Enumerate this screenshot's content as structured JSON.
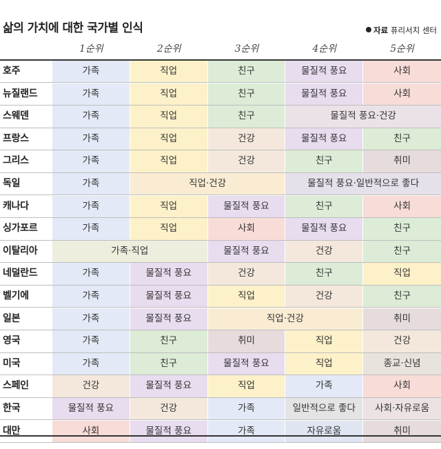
{
  "title": "삶의 가치에 대한 국가별 인식",
  "source": {
    "label": "자료",
    "text": "퓨리서치 센터"
  },
  "chart_data": {
    "type": "table",
    "columns": [
      "1순위",
      "2순위",
      "3순위",
      "4순위",
      "5순위"
    ],
    "rows": [
      {
        "country": "호주",
        "cells": [
          [
            "가족",
            1
          ],
          [
            "직업",
            1
          ],
          [
            "친구",
            1
          ],
          [
            "물질적 풍요",
            1
          ],
          [
            "사회",
            1
          ]
        ]
      },
      {
        "country": "뉴질랜드",
        "cells": [
          [
            "가족",
            1
          ],
          [
            "직업",
            1
          ],
          [
            "친구",
            1
          ],
          [
            "물질적 풍요",
            1
          ],
          [
            "사회",
            1
          ]
        ]
      },
      {
        "country": "스웨덴",
        "cells": [
          [
            "가족",
            1
          ],
          [
            "직업",
            1
          ],
          [
            "친구",
            1
          ],
          [
            "물질적 풍요·건강",
            2
          ]
        ]
      },
      {
        "country": "프랑스",
        "cells": [
          [
            "가족",
            1
          ],
          [
            "직업",
            1
          ],
          [
            "건강",
            1
          ],
          [
            "물질적 풍요",
            1
          ],
          [
            "친구",
            1
          ]
        ]
      },
      {
        "country": "그리스",
        "cells": [
          [
            "가족",
            1
          ],
          [
            "직업",
            1
          ],
          [
            "건강",
            1
          ],
          [
            "친구",
            1
          ],
          [
            "취미",
            1
          ]
        ]
      },
      {
        "country": "독일",
        "cells": [
          [
            "가족",
            1
          ],
          [
            "직업·건강",
            2
          ],
          [
            "물질적 풍요·일반적으로 좋다",
            2
          ]
        ]
      },
      {
        "country": "캐나다",
        "cells": [
          [
            "가족",
            1
          ],
          [
            "직업",
            1
          ],
          [
            "물질적 풍요",
            1
          ],
          [
            "친구",
            1
          ],
          [
            "사회",
            1
          ]
        ]
      },
      {
        "country": "싱가포르",
        "cells": [
          [
            "가족",
            1
          ],
          [
            "직업",
            1
          ],
          [
            "사회",
            1
          ],
          [
            "물질적 풍요",
            1
          ],
          [
            "친구",
            1
          ]
        ]
      },
      {
        "country": "이탈리아",
        "cells": [
          [
            "가족·직업",
            2
          ],
          [
            "물질적 풍요",
            1
          ],
          [
            "건강",
            1
          ],
          [
            "친구",
            1
          ]
        ]
      },
      {
        "country": "네덜란드",
        "cells": [
          [
            "가족",
            1
          ],
          [
            "물질적 풍요",
            1
          ],
          [
            "건강",
            1
          ],
          [
            "친구",
            1
          ],
          [
            "직업",
            1
          ]
        ]
      },
      {
        "country": "벨기에",
        "cells": [
          [
            "가족",
            1
          ],
          [
            "물질적 풍요",
            1
          ],
          [
            "직업",
            1
          ],
          [
            "건강",
            1
          ],
          [
            "친구",
            1
          ]
        ]
      },
      {
        "country": "일본",
        "cells": [
          [
            "가족",
            1
          ],
          [
            "물질적 풍요",
            1
          ],
          [
            "직업·건강",
            2
          ],
          [
            "취미",
            1
          ]
        ]
      },
      {
        "country": "영국",
        "cells": [
          [
            "가족",
            1
          ],
          [
            "친구",
            1
          ],
          [
            "취미",
            1
          ],
          [
            "직업",
            1
          ],
          [
            "건강",
            1
          ]
        ]
      },
      {
        "country": "미국",
        "cells": [
          [
            "가족",
            1
          ],
          [
            "친구",
            1
          ],
          [
            "물질적 풍요",
            1
          ],
          [
            "직업",
            1
          ],
          [
            "종교·신념",
            1
          ]
        ]
      },
      {
        "country": "스페인",
        "cells": [
          [
            "건강",
            1
          ],
          [
            "물질적 풍요",
            1
          ],
          [
            "직업",
            1
          ],
          [
            "가족",
            1
          ],
          [
            "사회",
            1
          ]
        ]
      },
      {
        "country": "한국",
        "cells": [
          [
            "물질적 풍요",
            1
          ],
          [
            "건강",
            1
          ],
          [
            "가족",
            1
          ],
          [
            "일반적으로 좋다",
            1
          ],
          [
            "사회·자유로움",
            1
          ]
        ]
      },
      {
        "country": "대만",
        "cells": [
          [
            "사회",
            1
          ],
          [
            "물질적 풍요",
            1
          ],
          [
            "가족",
            1
          ],
          [
            "자유로움",
            1
          ],
          [
            "취미",
            1
          ]
        ]
      }
    ],
    "category_colors": {
      "가족": "#e3e9f6",
      "직업": "#fdf1c9",
      "친구": "#dcecd6",
      "물질적 풍요": "#e8dcef",
      "사회": "#f8dcd8",
      "건강": "#f4e8dc",
      "취미": "#e6dcdc",
      "종교·신념": "#e8e3dc",
      "일반적으로 좋다": "#e4e4e4",
      "자유로움": "#e0e6f1",
      "물질적 풍요·건강": "#ebe2e8",
      "직업·건강": "#f9ecd3",
      "물질적 풍요·일반적으로 좋다": "#e6e0ea",
      "가족·직업": "#edeede",
      "사회·자유로움": "#ece2e4"
    }
  }
}
